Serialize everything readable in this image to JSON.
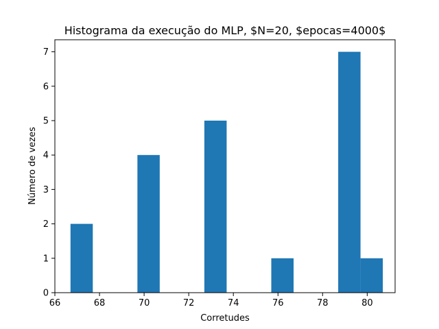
{
  "chart_data": {
    "type": "bar",
    "subtype": "histogram",
    "title": "Histograma da execução do MLP, $N=20, $epocas=4000$",
    "xlabel": "Corretudes",
    "ylabel": "Número de vezes",
    "xlim": [
      66,
      81.25
    ],
    "ylim": [
      0,
      7.35
    ],
    "xticks": [
      66,
      68,
      70,
      72,
      74,
      76,
      78,
      80
    ],
    "yticks": [
      0,
      1,
      2,
      3,
      4,
      5,
      6,
      7
    ],
    "grid": false,
    "legend": "none",
    "bar_color": "#1f77b4",
    "bins": [
      {
        "start": 66.7,
        "end": 67.7,
        "count": 2
      },
      {
        "start": 67.7,
        "end": 68.7,
        "count": 0
      },
      {
        "start": 68.7,
        "end": 69.7,
        "count": 0
      },
      {
        "start": 69.7,
        "end": 70.7,
        "count": 4
      },
      {
        "start": 70.7,
        "end": 71.7,
        "count": 0
      },
      {
        "start": 71.7,
        "end": 72.7,
        "count": 0
      },
      {
        "start": 72.7,
        "end": 73.7,
        "count": 5
      },
      {
        "start": 73.7,
        "end": 74.7,
        "count": 0
      },
      {
        "start": 74.7,
        "end": 75.7,
        "count": 0
      },
      {
        "start": 75.7,
        "end": 76.7,
        "count": 1
      },
      {
        "start": 76.7,
        "end": 77.7,
        "count": 0
      },
      {
        "start": 77.7,
        "end": 78.7,
        "count": 0
      },
      {
        "start": 78.7,
        "end": 79.7,
        "count": 7
      },
      {
        "start": 79.7,
        "end": 80.7,
        "count": 1
      }
    ]
  }
}
